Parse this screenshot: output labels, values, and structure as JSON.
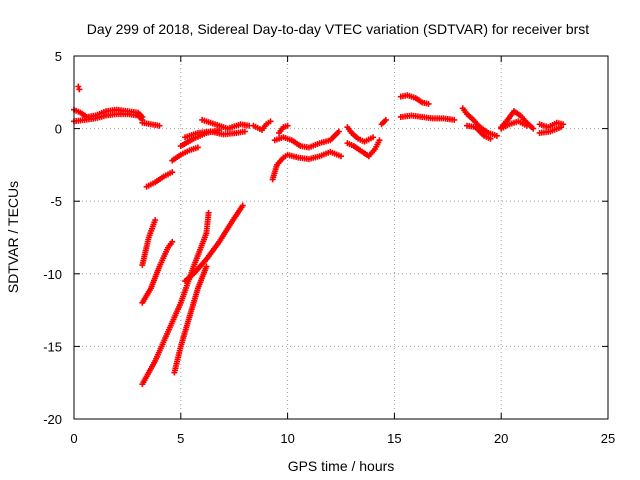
{
  "chart_data": {
    "type": "scatter",
    "title": "Day 299 of 2018, Sidereal Day-to-day VTEC variation (SDTVAR) for receiver brst",
    "xlabel": "GPS time / hours",
    "ylabel": "SDTVAR / TECUs",
    "xlim": [
      0,
      25
    ],
    "ylim": [
      -20,
      5
    ],
    "xticks": [
      0,
      5,
      10,
      15,
      20,
      25
    ],
    "yticks": [
      5,
      0,
      -5,
      -10,
      -15,
      -20
    ],
    "xtick_labels": [
      "0",
      "5",
      "10",
      "15",
      "20",
      "25"
    ],
    "ytick_labels": [
      "5",
      "0",
      "-5",
      "-10",
      "-15",
      "-20"
    ],
    "grid": true,
    "marker": "+",
    "color": "#ff0000",
    "series": [
      {
        "name": "SDTVAR",
        "segments": [
          [
            [
              0.0,
              1.3
            ],
            [
              0.3,
              1.1
            ],
            [
              0.6,
              0.8
            ],
            [
              1.0,
              0.9
            ],
            [
              1.5,
              1.2
            ],
            [
              2.0,
              1.3
            ],
            [
              2.5,
              1.2
            ],
            [
              3.0,
              1.1
            ],
            [
              3.2,
              0.8
            ]
          ],
          [
            [
              0.0,
              0.5
            ],
            [
              0.5,
              0.6
            ],
            [
              1.0,
              0.7
            ],
            [
              1.5,
              0.9
            ],
            [
              2.0,
              1.0
            ],
            [
              2.5,
              1.0
            ],
            [
              3.0,
              0.9
            ],
            [
              3.2,
              0.6
            ]
          ],
          [
            [
              0.2,
              2.9
            ],
            [
              0.25,
              2.7
            ]
          ],
          [
            [
              3.2,
              0.4
            ],
            [
              3.6,
              0.3
            ],
            [
              4.0,
              0.2
            ]
          ],
          [
            [
              3.4,
              -4.0
            ],
            [
              3.8,
              -3.7
            ],
            [
              4.2,
              -3.3
            ],
            [
              4.6,
              -3.0
            ]
          ],
          [
            [
              4.6,
              -2.2
            ],
            [
              5.0,
              -1.8
            ],
            [
              5.4,
              -1.5
            ],
            [
              5.8,
              -1.3
            ]
          ],
          [
            [
              5.0,
              -1.2
            ],
            [
              5.6,
              -0.7
            ],
            [
              6.2,
              -0.3
            ],
            [
              6.8,
              -0.1
            ]
          ],
          [
            [
              5.2,
              -0.6
            ],
            [
              5.8,
              -0.3
            ],
            [
              6.4,
              -0.2
            ],
            [
              7.0,
              -0.4
            ],
            [
              7.6,
              -0.3
            ],
            [
              8.0,
              -0.2
            ]
          ],
          [
            [
              6.0,
              0.6
            ],
            [
              6.6,
              0.3
            ],
            [
              7.2,
              0.0
            ],
            [
              7.8,
              0.3
            ],
            [
              8.2,
              0.2
            ]
          ],
          [
            [
              8.4,
              0.2
            ],
            [
              8.8,
              -0.1
            ],
            [
              9.0,
              0.3
            ],
            [
              9.2,
              0.5
            ]
          ],
          [
            [
              3.2,
              -9.4
            ],
            [
              3.5,
              -7.5
            ],
            [
              3.8,
              -6.3
            ]
          ],
          [
            [
              3.2,
              -12.0
            ],
            [
              3.6,
              -11.0
            ],
            [
              4.0,
              -9.5
            ],
            [
              4.4,
              -8.2
            ],
            [
              4.6,
              -7.8
            ]
          ],
          [
            [
              3.2,
              -17.6
            ],
            [
              3.8,
              -16.0
            ],
            [
              4.4,
              -14.0
            ],
            [
              5.0,
              -12.0
            ],
            [
              5.6,
              -9.5
            ],
            [
              6.2,
              -7.2
            ],
            [
              6.3,
              -5.8
            ]
          ],
          [
            [
              4.7,
              -16.8
            ],
            [
              5.0,
              -15.0
            ],
            [
              5.4,
              -13.0
            ],
            [
              5.8,
              -11.0
            ],
            [
              6.2,
              -9.5
            ]
          ],
          [
            [
              5.2,
              -10.5
            ],
            [
              5.6,
              -10.0
            ],
            [
              6.2,
              -9.0
            ],
            [
              6.8,
              -7.8
            ],
            [
              7.4,
              -6.4
            ],
            [
              7.9,
              -5.3
            ]
          ],
          [
            [
              9.3,
              -3.5
            ],
            [
              9.5,
              -2.5
            ],
            [
              9.8,
              -2.0
            ],
            [
              10.0,
              -1.8
            ],
            [
              10.5,
              -2.0
            ],
            [
              11.0,
              -2.1
            ],
            [
              11.5,
              -1.9
            ],
            [
              12.0,
              -1.6
            ],
            [
              12.5,
              -1.9
            ]
          ],
          [
            [
              9.4,
              -0.8
            ],
            [
              9.8,
              -0.6
            ],
            [
              10.2,
              -0.8
            ],
            [
              10.6,
              -1.2
            ],
            [
              11.0,
              -1.3
            ],
            [
              11.5,
              -1.0
            ],
            [
              12.0,
              -0.8
            ],
            [
              12.4,
              -0.2
            ]
          ],
          [
            [
              9.6,
              -0.3
            ],
            [
              9.8,
              0.1
            ],
            [
              10.0,
              0.2
            ]
          ],
          [
            [
              12.8,
              -1.0
            ],
            [
              13.1,
              -1.2
            ],
            [
              13.4,
              -1.5
            ],
            [
              13.8,
              -1.9
            ],
            [
              14.1,
              -1.4
            ],
            [
              14.3,
              -0.8
            ]
          ],
          [
            [
              12.8,
              0.1
            ],
            [
              13.0,
              -0.3
            ],
            [
              13.3,
              -0.7
            ],
            [
              13.6,
              -0.9
            ],
            [
              14.0,
              -0.6
            ]
          ],
          [
            [
              14.4,
              0.3
            ],
            [
              14.6,
              0.6
            ]
          ],
          [
            [
              15.3,
              2.2
            ],
            [
              15.6,
              2.3
            ],
            [
              16.0,
              2.1
            ],
            [
              16.3,
              1.8
            ],
            [
              16.6,
              1.7
            ]
          ],
          [
            [
              15.3,
              0.8
            ],
            [
              15.8,
              0.9
            ],
            [
              16.3,
              0.8
            ],
            [
              16.8,
              0.7
            ],
            [
              17.3,
              0.7
            ],
            [
              17.8,
              0.6
            ]
          ],
          [
            [
              18.2,
              1.4
            ],
            [
              18.4,
              1.0
            ],
            [
              18.7,
              0.6
            ],
            [
              19.0,
              0.1
            ],
            [
              19.4,
              -0.3
            ],
            [
              19.8,
              -0.5
            ]
          ],
          [
            [
              18.4,
              0.2
            ],
            [
              18.8,
              0.1
            ],
            [
              19.2,
              -0.5
            ],
            [
              19.5,
              -0.7
            ]
          ],
          [
            [
              20.0,
              0.1
            ],
            [
              20.3,
              0.6
            ],
            [
              20.6,
              1.2
            ],
            [
              20.9,
              0.9
            ],
            [
              21.2,
              0.4
            ],
            [
              21.5,
              0.0
            ]
          ],
          [
            [
              20.0,
              0.0
            ],
            [
              20.4,
              0.3
            ],
            [
              20.8,
              0.5
            ],
            [
              21.2,
              0.2
            ]
          ],
          [
            [
              21.8,
              0.3
            ],
            [
              22.2,
              0.1
            ],
            [
              22.6,
              0.4
            ],
            [
              22.9,
              0.3
            ]
          ],
          [
            [
              21.8,
              -0.3
            ],
            [
              22.3,
              -0.2
            ],
            [
              22.8,
              0.1
            ]
          ]
        ]
      }
    ]
  }
}
